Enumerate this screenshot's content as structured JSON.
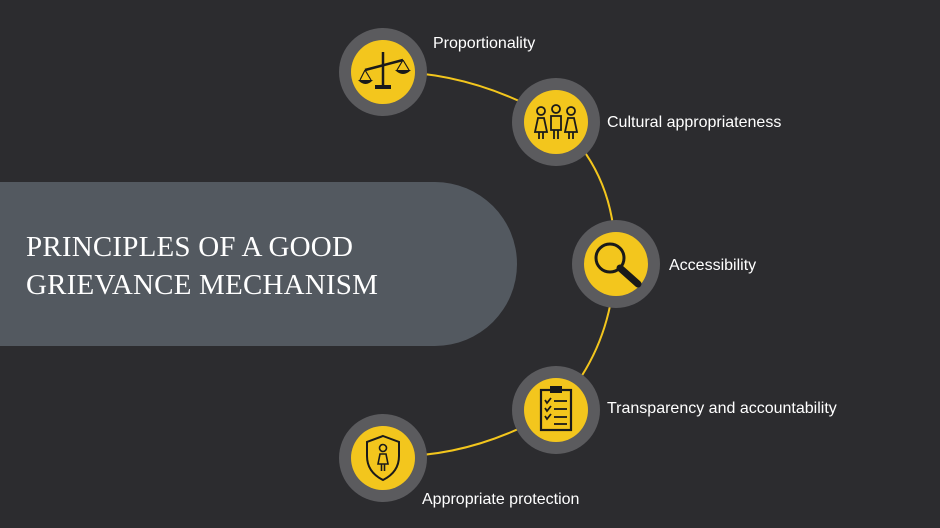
{
  "title": {
    "line1": "PRINCIPLES OF A GOOD",
    "line2": "GRIEVANCE MECHANISM"
  },
  "principles": [
    {
      "label": "Proportionality",
      "icon": "scales-icon"
    },
    {
      "label": "Cultural appropriateness",
      "icon": "people-group-icon"
    },
    {
      "label": "Accessibility",
      "icon": "magnifying-glass-icon"
    },
    {
      "label": "Transparency and accountability",
      "icon": "clipboard-checklist-icon"
    },
    {
      "label": "Appropriate protection",
      "icon": "shield-person-icon"
    }
  ],
  "colors": {
    "background": "#2c2c2f",
    "banner": "#535960",
    "accent": "#f3c61d",
    "ring": "#5b5b5e",
    "text": "#ffffff"
  }
}
